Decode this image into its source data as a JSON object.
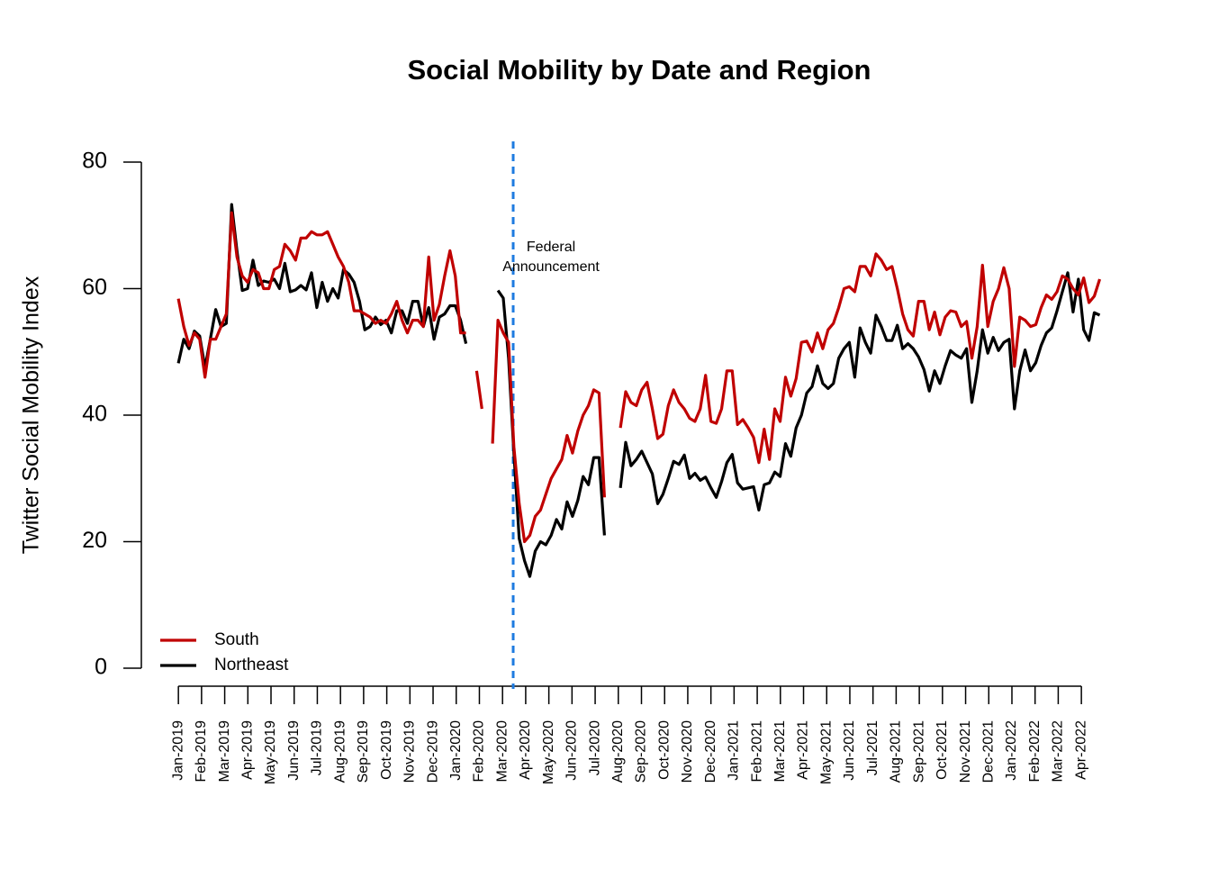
{
  "chart_data": {
    "type": "line",
    "title": "Social Mobility by Date and Region",
    "ylabel": "Twitter Social Mobility Index",
    "ylim": [
      0,
      80
    ],
    "yticks": [
      0,
      20,
      40,
      60,
      80
    ],
    "xlim": [
      -1.6,
      41.6
    ],
    "xticks": [
      {
        "value": 0,
        "label": "Jan-2019"
      },
      {
        "value": 1,
        "label": "Feb-2019"
      },
      {
        "value": 2,
        "label": "Mar-2019"
      },
      {
        "value": 3,
        "label": "Apr-2019"
      },
      {
        "value": 4,
        "label": "May-2019"
      },
      {
        "value": 5,
        "label": "Jun-2019"
      },
      {
        "value": 6,
        "label": "Jul-2019"
      },
      {
        "value": 7,
        "label": "Aug-2019"
      },
      {
        "value": 8,
        "label": "Sep-2019"
      },
      {
        "value": 9,
        "label": "Oct-2019"
      },
      {
        "value": 10,
        "label": "Nov-2019"
      },
      {
        "value": 11,
        "label": "Dec-2019"
      },
      {
        "value": 12,
        "label": "Jan-2020"
      },
      {
        "value": 13,
        "label": "Feb-2020"
      },
      {
        "value": 14,
        "label": "Mar-2020"
      },
      {
        "value": 15,
        "label": "Apr-2020"
      },
      {
        "value": 16,
        "label": "May-2020"
      },
      {
        "value": 17,
        "label": "Jun-2020"
      },
      {
        "value": 18,
        "label": "Jul-2020"
      },
      {
        "value": 19,
        "label": "Aug-2020"
      },
      {
        "value": 20,
        "label": "Sep-2020"
      },
      {
        "value": 21,
        "label": "Oct-2020"
      },
      {
        "value": 22,
        "label": "Nov-2020"
      },
      {
        "value": 23,
        "label": "Dec-2020"
      },
      {
        "value": 24,
        "label": "Jan-2021"
      },
      {
        "value": 25,
        "label": "Feb-2021"
      },
      {
        "value": 26,
        "label": "Mar-2021"
      },
      {
        "value": 27,
        "label": "Apr-2021"
      },
      {
        "value": 28,
        "label": "May-2021"
      },
      {
        "value": 29,
        "label": "Jun-2021"
      },
      {
        "value": 30,
        "label": "Jul-2021"
      },
      {
        "value": 31,
        "label": "Aug-2021"
      },
      {
        "value": 32,
        "label": "Sep-2021"
      },
      {
        "value": 33,
        "label": "Oct-2021"
      },
      {
        "value": 34,
        "label": "Nov-2021"
      },
      {
        "value": 35,
        "label": "Dec-2021"
      },
      {
        "value": 36,
        "label": "Jan-2022"
      },
      {
        "value": 37,
        "label": "Feb-2022"
      },
      {
        "value": 38,
        "label": "Mar-2022"
      },
      {
        "value": 39,
        "label": "Apr-2022"
      }
    ],
    "x": [
      0,
      0.23,
      0.46,
      0.69,
      0.92,
      1.15,
      1.38,
      1.61,
      1.84,
      2.07,
      2.3,
      2.53,
      2.76,
      2.99,
      3.22,
      3.45,
      3.68,
      3.91,
      4.14,
      4.37,
      4.6,
      4.83,
      5.06,
      5.29,
      5.52,
      5.75,
      5.98,
      6.21,
      6.44,
      6.67,
      6.9,
      7.13,
      7.36,
      7.59,
      7.82,
      8.05,
      8.28,
      8.51,
      8.74,
      8.97,
      9.2,
      9.43,
      9.66,
      9.89,
      10.12,
      10.35,
      10.58,
      10.81,
      11.04,
      11.27,
      11.5,
      11.73,
      11.96,
      12.19,
      12.42,
      12.65,
      12.88,
      13.11,
      13.34,
      13.57,
      13.8,
      14.03,
      14.26,
      14.49,
      14.72,
      14.95,
      15.18,
      15.41,
      15.64,
      15.87,
      16.1,
      16.33,
      16.56,
      16.79,
      17.02,
      17.25,
      17.48,
      17.71,
      17.94,
      18.17,
      18.4,
      18.63,
      18.86,
      19.09,
      19.32,
      19.55,
      19.78,
      20.01,
      20.24,
      20.47,
      20.7,
      20.93,
      21.16,
      21.39,
      21.62,
      21.85,
      22.08,
      22.31,
      22.54,
      22.77,
      23,
      23.23,
      23.46,
      23.69,
      23.92,
      24.15,
      24.38,
      24.61,
      24.84,
      25.07,
      25.3,
      25.53,
      25.76,
      25.99,
      26.22,
      26.45,
      26.68,
      26.91,
      27.14,
      27.37,
      27.6,
      27.83,
      28.06,
      28.29,
      28.52,
      28.75,
      28.98,
      29.21,
      29.44,
      29.67,
      29.9,
      30.13,
      30.36,
      30.59,
      30.82,
      31.05,
      31.28,
      31.51,
      31.74,
      31.97,
      32.2,
      32.43,
      32.66,
      32.89,
      33.12,
      33.35,
      33.58,
      33.81,
      34.04,
      34.27,
      34.5,
      34.73,
      34.96,
      35.19,
      35.42,
      35.65,
      35.88,
      36.11,
      36.34,
      36.57,
      36.8,
      37.03,
      37.26,
      37.49,
      37.72,
      37.95,
      38.18,
      38.41,
      38.64,
      38.87,
      39.1,
      39.33,
      39.56,
      39.79
    ],
    "series": [
      {
        "name": "South",
        "color": "#c00000",
        "values": [
          58.4,
          54,
          51,
          53,
          52,
          46,
          52,
          52,
          54,
          56,
          72,
          65,
          62,
          61,
          63,
          62.5,
          60,
          60,
          63,
          63.5,
          67,
          66,
          64.5,
          68,
          68,
          69,
          68.5,
          68.5,
          69,
          67,
          65,
          63.5,
          61,
          56.5,
          56.5,
          56,
          55.5,
          54.5,
          55,
          54.5,
          56,
          58,
          55,
          53,
          55,
          55,
          54,
          65,
          55,
          57.5,
          62,
          66,
          62,
          53,
          53,
          null,
          47,
          41,
          null,
          35.5,
          55,
          53,
          51.5,
          35,
          26,
          20,
          21,
          24,
          25,
          27.5,
          30,
          31.5,
          33,
          36.8,
          34,
          37.5,
          40,
          41.5,
          44,
          43.5,
          27,
          null,
          null,
          38,
          43.7,
          42,
          41.5,
          44,
          45.2,
          41,
          36.3,
          37,
          41.5,
          44,
          42,
          41,
          39.5,
          39,
          41,
          46.3,
          39,
          38.7,
          41,
          47,
          47,
          38.5,
          39.3,
          38,
          36.5,
          32.5,
          37.8,
          33,
          41,
          39,
          46,
          43,
          45.8,
          51.5,
          51.7,
          50,
          53,
          50.5,
          53.5,
          54.5,
          57,
          60,
          60.3,
          59.5,
          63.5,
          63.5,
          62,
          65.5,
          64.5,
          63,
          63.5,
          60,
          56,
          53.5,
          52.5,
          58,
          58,
          53.5,
          56.3,
          52.7,
          55.5,
          56.5,
          56.3,
          54,
          54.8,
          49,
          54,
          63.7,
          54,
          58,
          60,
          63.3,
          60,
          47.7,
          55.5,
          55,
          54,
          54.3,
          57,
          59,
          58.3,
          59.5,
          62,
          61.5,
          60,
          59,
          61.7,
          57.8,
          58.8,
          61.5
        ]
      },
      {
        "name": "Northeast",
        "color": "#000000",
        "values": [
          48.2,
          52,
          50.5,
          53.3,
          52.5,
          47.5,
          52,
          56.7,
          54,
          54.5,
          73.3,
          66,
          59.7,
          60,
          64.5,
          60.5,
          61.2,
          61,
          61.5,
          60,
          64,
          59.5,
          59.8,
          60.5,
          59.8,
          62.5,
          57,
          61,
          58,
          60,
          58.5,
          63,
          62.3,
          61,
          58,
          53.5,
          54,
          55.5,
          54.3,
          55,
          53,
          56.5,
          56.5,
          54.5,
          58,
          58,
          54,
          57,
          52,
          55.5,
          56,
          57.3,
          57.3,
          55,
          51.3,
          null,
          null,
          null,
          null,
          null,
          59.7,
          58.5,
          49,
          34,
          20.5,
          17,
          14.5,
          18.5,
          20,
          19.5,
          21,
          23.5,
          22,
          26.3,
          24,
          26.5,
          30.3,
          29,
          33.3,
          33.3,
          21,
          null,
          null,
          28.5,
          35.7,
          32,
          33,
          34.3,
          32.5,
          30.7,
          26,
          27.5,
          30,
          32.7,
          32.2,
          33.7,
          30,
          30.8,
          29.7,
          30.2,
          28.5,
          27,
          29.5,
          32.5,
          33.8,
          29.3,
          28.3,
          28.5,
          28.7,
          25,
          29,
          29.3,
          31,
          30.3,
          35.5,
          33.5,
          38,
          40,
          43.5,
          44.5,
          47.8,
          45,
          44.2,
          45,
          49,
          50.5,
          51.5,
          46,
          53.8,
          51.5,
          49.8,
          55.8,
          54,
          51.8,
          51.8,
          54.2,
          50.5,
          51.3,
          50.5,
          49.2,
          47.2,
          43.8,
          47,
          45,
          47.8,
          50.2,
          49.5,
          49,
          50.5,
          42,
          47,
          53.5,
          49.8,
          52.3,
          50.2,
          51.5,
          52,
          41,
          47,
          50.3,
          47,
          48.3,
          51,
          53,
          53.8,
          56.5,
          59.5,
          62.5,
          56.3,
          61.5,
          53.5,
          51.8,
          56.2,
          55.8
        ]
      }
    ],
    "vline": {
      "x": 14.46,
      "color": "#1e7be0",
      "label": [
        "Federal",
        "Announcement"
      ]
    },
    "legend": "bottomleft"
  }
}
